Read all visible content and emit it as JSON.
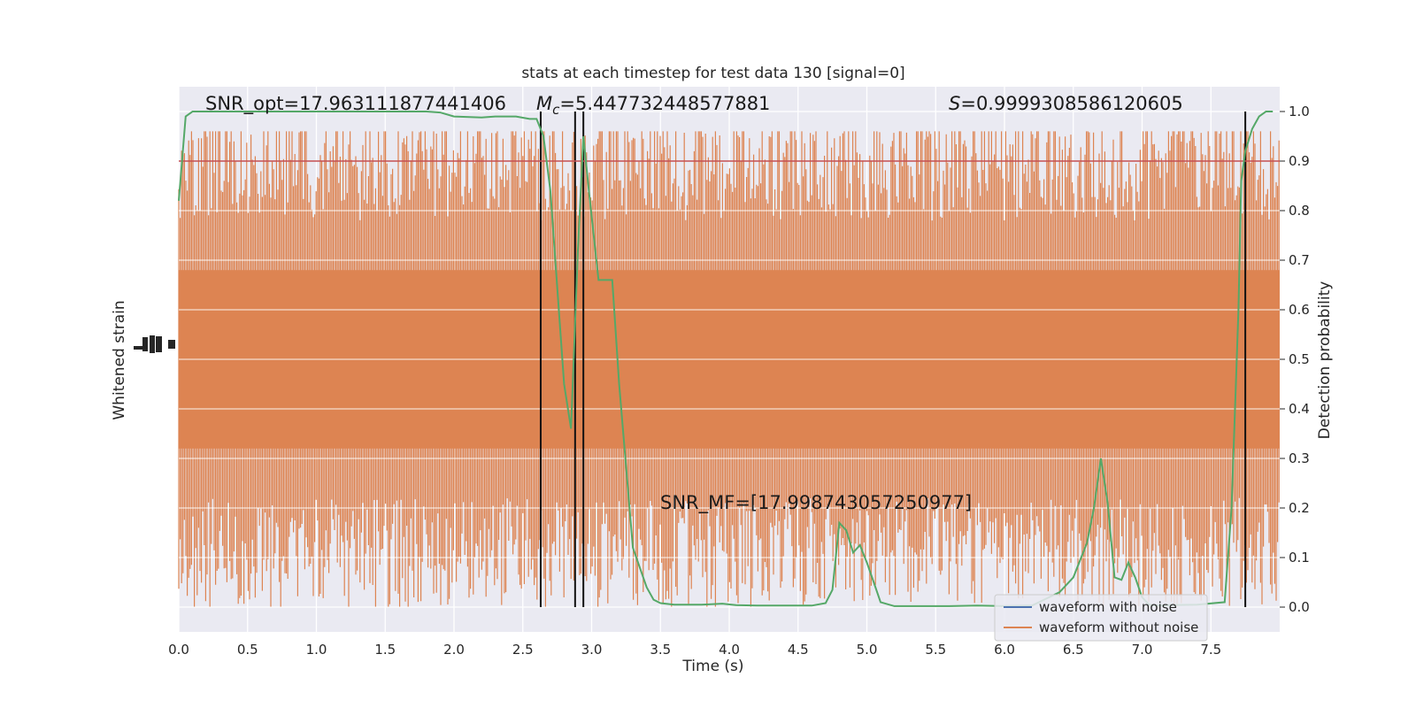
{
  "chart_data": {
    "type": "line",
    "title": "stats at each timestep for test data 130 [signal=0]",
    "xlabel": "Time (s)",
    "ylabel_left": "Whitened strain",
    "ylabel_right": "Detection probability",
    "xlim": [
      0.0,
      8.0
    ],
    "ylim_right": [
      -0.05,
      1.05
    ],
    "x_ticks": [
      "0.0",
      "0.5",
      "1.0",
      "1.5",
      "2.0",
      "2.5",
      "3.0",
      "3.5",
      "4.0",
      "4.5",
      "5.0",
      "5.5",
      "6.0",
      "6.5",
      "7.0",
      "7.5"
    ],
    "y_right_ticks": [
      "0.0",
      "0.1",
      "0.2",
      "0.3",
      "0.4",
      "0.5",
      "0.6",
      "0.7",
      "0.8",
      "0.9",
      "1.0"
    ],
    "grid": true,
    "legend_position": "lower right",
    "annotations": {
      "snr_opt": "SNR_opt=17.963111877441406",
      "mc_symbol": "M",
      "mc_sub": "c",
      "mc_value": "=5.447732448577881",
      "s_symbol": "S",
      "s_value": "=0.9999308586120605",
      "snr_mf": "SNR_MF=[17.99874305725097​7]"
    },
    "threshold": 0.9,
    "vertical_lines": [
      2.63,
      2.88,
      2.94,
      7.75
    ],
    "series": [
      {
        "name": "waveform with noise",
        "color": "#4c72b0",
        "style": "noisy strain (hidden beneath orange)"
      },
      {
        "name": "waveform without noise",
        "color": "#dd8452",
        "style": "whitened strain noise band"
      }
    ],
    "detection_probability": {
      "color": "#55a868",
      "x": [
        0.0,
        0.05,
        0.1,
        0.2,
        0.4,
        0.6,
        0.8,
        1.0,
        1.2,
        1.4,
        1.6,
        1.8,
        1.9,
        2.0,
        2.2,
        2.3,
        2.45,
        2.55,
        2.6,
        2.65,
        2.7,
        2.8,
        2.85,
        2.9,
        2.94,
        2.98,
        3.05,
        3.1,
        3.15,
        3.2,
        3.3,
        3.4,
        3.45,
        3.5,
        3.6,
        3.7,
        3.8,
        3.95,
        4.05,
        4.2,
        4.4,
        4.6,
        4.7,
        4.75,
        4.8,
        4.85,
        4.9,
        4.95,
        5.0,
        5.05,
        5.1,
        5.2,
        5.25,
        5.4,
        5.6,
        5.8,
        6.0,
        6.2,
        6.4,
        6.5,
        6.6,
        6.65,
        6.7,
        6.75,
        6.8,
        6.85,
        6.9,
        6.95,
        7.0,
        7.05,
        7.1,
        7.2,
        7.4,
        7.6,
        7.65,
        7.7,
        7.72,
        7.75,
        7.8,
        7.85,
        7.9,
        7.95
      ],
      "y": [
        0.82,
        0.99,
        1.0,
        1.0,
        1.0,
        1.0,
        1.0,
        1.0,
        1.0,
        1.0,
        1.0,
        1.0,
        0.998,
        0.99,
        0.988,
        0.99,
        0.99,
        0.985,
        0.985,
        0.95,
        0.84,
        0.45,
        0.36,
        0.72,
        0.95,
        0.84,
        0.66,
        0.66,
        0.66,
        0.45,
        0.12,
        0.04,
        0.015,
        0.008,
        0.005,
        0.005,
        0.005,
        0.007,
        0.004,
        0.003,
        0.003,
        0.003,
        0.008,
        0.035,
        0.17,
        0.155,
        0.11,
        0.125,
        0.09,
        0.05,
        0.01,
        0.002,
        0.002,
        0.002,
        0.002,
        0.003,
        0.002,
        0.003,
        0.03,
        0.06,
        0.13,
        0.2,
        0.3,
        0.21,
        0.06,
        0.055,
        0.09,
        0.06,
        0.02,
        0.005,
        0.003,
        0.004,
        0.005,
        0.01,
        0.2,
        0.6,
        0.86,
        0.92,
        0.965,
        0.99,
        1.0,
        1.0
      ]
    }
  },
  "legend": {
    "with_noise": "waveform with noise",
    "without_noise": "waveform without noise"
  }
}
